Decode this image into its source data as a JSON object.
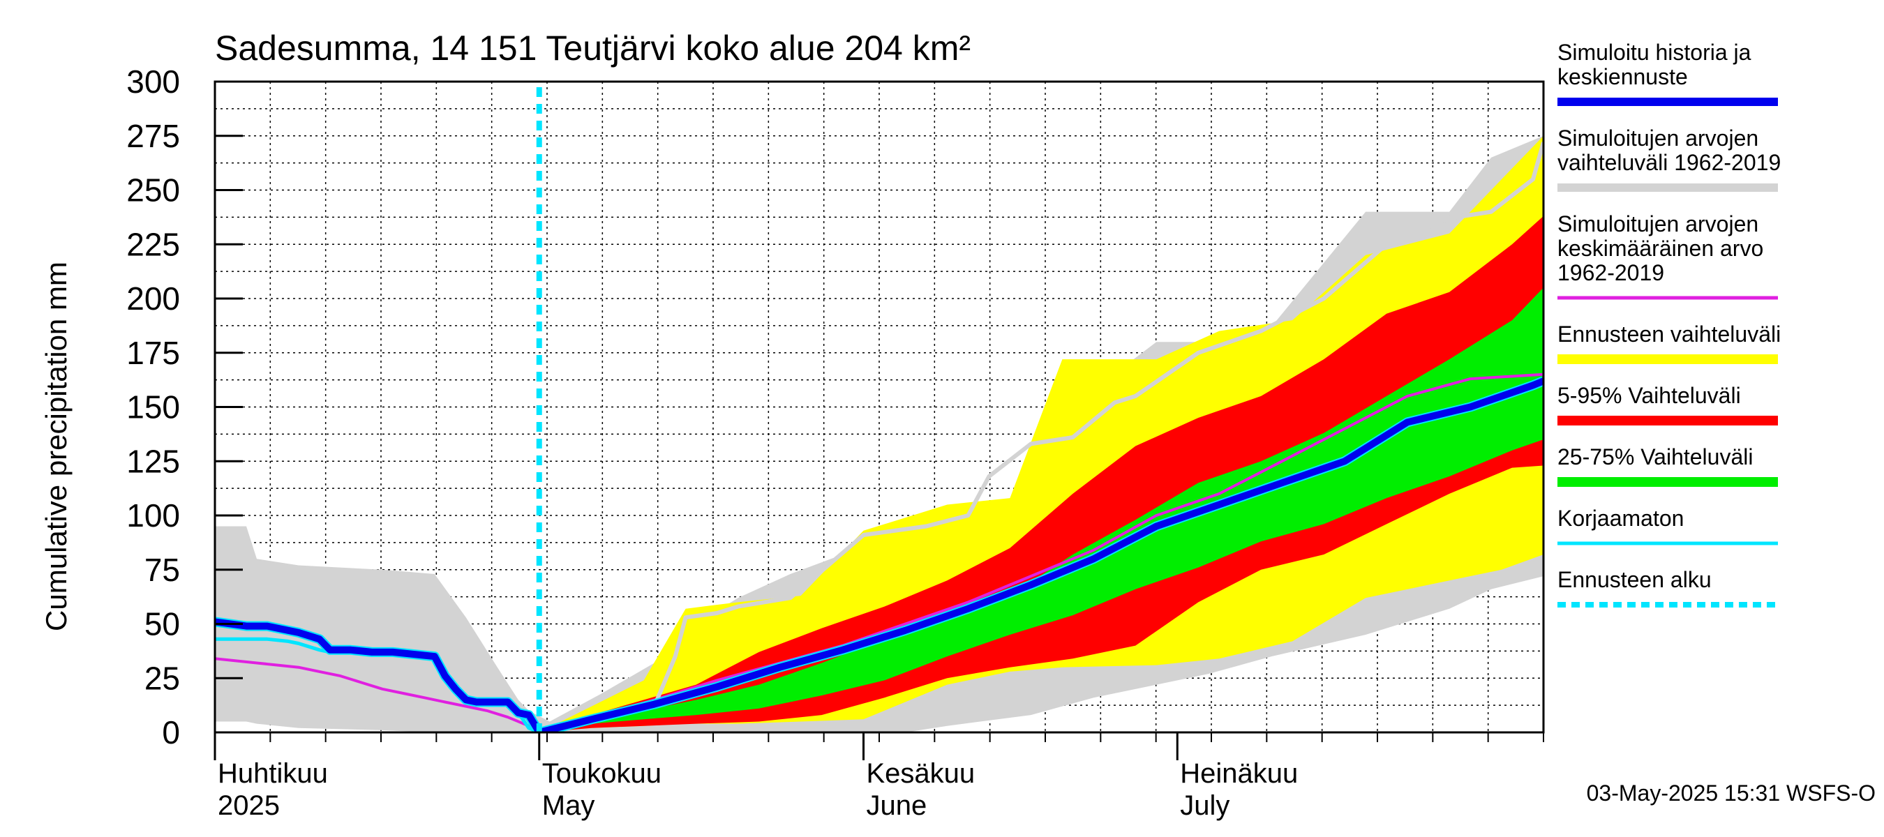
{
  "chart_data": {
    "type": "area",
    "title": "Sadesumma, 14 151 Teutjärvi koko alue 204 km²",
    "ylabel": "Cumulative precipitation   mm",
    "ylim": [
      0,
      300
    ],
    "yticks": [
      0,
      25,
      50,
      75,
      100,
      125,
      150,
      175,
      200,
      225,
      250,
      275,
      300
    ],
    "xlim": [
      0,
      127
    ],
    "x_unit": "days since 2025-03-24",
    "grid": true,
    "forecast_start_day": 31,
    "month_labels": [
      {
        "day": 0,
        "line1": "Huhtikuu",
        "line2": "2025"
      },
      {
        "day": 31,
        "line1": "Toukokuu",
        "line2": "May"
      },
      {
        "day": 62,
        "line1": "Kesäkuu",
        "line2": "June"
      },
      {
        "day": 92,
        "line1": "Heinäkuu",
        "line2": "July"
      }
    ],
    "legend_position": "right",
    "legend": [
      {
        "label": [
          "Simuloitu historia ja",
          "keskiennuste"
        ],
        "color": "#0000ee",
        "kind": "line",
        "width": 12
      },
      {
        "label": [
          "Simuloitujen arvojen",
          "vaihteluväli 1962-2019"
        ],
        "color": "#d3d3d3",
        "kind": "line",
        "width": 12
      },
      {
        "label": [
          "Simuloitujen arvojen",
          "keskimääräinen arvo",
          "   1962-2019"
        ],
        "color": "#e020e0",
        "kind": "line",
        "width": 5
      },
      {
        "label": [
          "Ennusteen vaihteluväli"
        ],
        "color": "#ffff00",
        "kind": "line",
        "width": 14
      },
      {
        "label": [
          "5-95% Vaihteluväli"
        ],
        "color": "#ff0000",
        "kind": "line",
        "width": 14
      },
      {
        "label": [
          "25-75% Vaihteluväli"
        ],
        "color": "#00ee00",
        "kind": "line",
        "width": 14
      },
      {
        "label": [
          "Korjaamaton"
        ],
        "color": "#00e5ff",
        "kind": "line",
        "width": 5
      },
      {
        "label": [
          "Ennusteen alku"
        ],
        "color": "#00e5ff",
        "kind": "dashed",
        "width": 8
      }
    ],
    "series": [
      {
        "name": "Simuloitujen arvojen vaihteluväli 1962-2019",
        "color": "#d3d3d3",
        "kind": "band",
        "x": [
          -1,
          3,
          4,
          8,
          16,
          21,
          24,
          27,
          29,
          30,
          32,
          37,
          42,
          46,
          50,
          55,
          60,
          66,
          70,
          78,
          84,
          90,
          95,
          101,
          110,
          118,
          122,
          127
        ],
        "upper": [
          95,
          95,
          80,
          77,
          75,
          73,
          53,
          30,
          15,
          10,
          5,
          18,
          32,
          50,
          62,
          73,
          82,
          83,
          93,
          95,
          158,
          180,
          180,
          187,
          240,
          240,
          265,
          275
        ],
        "lower": [
          5,
          5,
          4,
          2,
          1,
          0,
          0,
          0,
          0,
          0,
          0,
          0,
          0,
          0,
          0,
          0,
          0,
          0,
          3,
          8,
          16,
          22,
          27,
          35,
          45,
          57,
          66,
          72
        ]
      },
      {
        "name": "Ennusteen vaihteluväli",
        "color": "#ffff00",
        "kind": "band",
        "x": [
          31,
          36,
          41,
          45,
          50,
          56,
          62,
          70,
          76,
          81,
          90,
          96,
          103,
          110,
          118,
          123,
          127
        ],
        "upper": [
          0,
          12,
          24,
          57,
          60,
          63,
          93,
          105,
          108,
          172,
          172,
          185,
          190,
          220,
          230,
          255,
          275
        ],
        "lower": [
          0,
          2,
          3,
          4,
          4,
          5,
          6,
          22,
          28,
          30,
          31,
          34,
          42,
          62,
          70,
          75,
          82
        ]
      },
      {
        "name": "5-95% Vaihteluväli",
        "color": "#ff0000",
        "kind": "band",
        "x": [
          31,
          36,
          41,
          46,
          52,
          58,
          64,
          70,
          76,
          82,
          88,
          94,
          100,
          106,
          112,
          118,
          124,
          127
        ],
        "upper": [
          0,
          8,
          15,
          22,
          37,
          48,
          58,
          70,
          85,
          110,
          132,
          145,
          155,
          172,
          193,
          203,
          225,
          238
        ],
        "lower": [
          0,
          2,
          3,
          4,
          5,
          8,
          16,
          25,
          30,
          34,
          40,
          60,
          75,
          82,
          96,
          110,
          122,
          123
        ]
      },
      {
        "name": "25-75% Vaihteluväli",
        "color": "#00ee00",
        "kind": "band",
        "x": [
          31,
          36,
          41,
          46,
          52,
          58,
          64,
          70,
          76,
          82,
          88,
          94,
          100,
          106,
          112,
          118,
          124,
          127
        ],
        "upper": [
          0,
          6,
          10,
          15,
          22,
          32,
          43,
          53,
          63,
          82,
          98,
          115,
          125,
          138,
          155,
          172,
          190,
          205
        ],
        "lower": [
          0,
          4,
          6,
          8,
          11,
          17,
          24,
          35,
          45,
          54,
          66,
          76,
          88,
          96,
          108,
          118,
          130,
          135
        ]
      },
      {
        "name": "Simuloitujen arvojen keskimääräinen arvo 1962-2019",
        "color": "#e020e0",
        "kind": "line",
        "width": 4,
        "x": [
          0,
          2,
          4,
          6,
          8,
          10,
          12,
          14,
          16,
          18,
          20,
          22,
          24,
          26,
          28,
          30,
          31,
          36,
          42,
          48,
          54,
          60,
          66,
          72,
          78,
          84,
          90,
          96,
          102,
          108,
          114,
          120,
          127
        ],
        "y": [
          34,
          33,
          32,
          31,
          30,
          28,
          26,
          23,
          20,
          18,
          16,
          14,
          12,
          10,
          7,
          3,
          0,
          7,
          15,
          24,
          32,
          40,
          50,
          60,
          72,
          84,
          100,
          110,
          125,
          140,
          155,
          163,
          165
        ]
      },
      {
        "name": "Simuloitujen arvojen vaihteluväli (yläraja) 1962-2019",
        "color": "#d3d3d3",
        "kind": "line",
        "width": 6,
        "x": [
          31,
          36,
          42,
          44,
          45,
          48,
          50,
          55,
          62,
          68,
          72,
          74,
          78,
          82,
          86,
          88,
          94,
          100,
          106,
          112,
          118,
          122,
          126,
          127
        ],
        "y": [
          0,
          6,
          12,
          35,
          53,
          55,
          58,
          62,
          91,
          95,
          100,
          118,
          133,
          136,
          152,
          155,
          175,
          185,
          200,
          225,
          237,
          240,
          255,
          272
        ]
      },
      {
        "name": "Korjaamaton",
        "color": "#00e5ff",
        "kind": "line",
        "width": 5,
        "x": [
          0,
          3,
          5,
          7,
          8,
          10,
          11,
          13,
          15,
          17,
          19,
          21,
          22,
          23,
          24,
          25,
          26,
          28,
          29,
          30,
          31
        ],
        "y": [
          43,
          43,
          43,
          42,
          41,
          38,
          37,
          37,
          36,
          36,
          35,
          34,
          25,
          19,
          14,
          13,
          13,
          13,
          9,
          2,
          0
        ]
      },
      {
        "name": "Simuloitu historia ja keskiennuste",
        "color": "#0000ee",
        "kind": "line",
        "width": 10,
        "x": [
          0,
          3,
          5,
          7,
          8,
          10,
          11,
          13,
          15,
          17,
          19,
          21,
          22,
          23,
          24,
          25,
          26,
          28,
          29,
          30,
          31,
          36,
          42,
          48,
          54,
          60,
          66,
          72,
          78,
          84,
          90,
          96,
          102,
          108,
          114,
          120,
          126,
          127
        ],
        "y": [
          51,
          49,
          49,
          47,
          46,
          43,
          38,
          38,
          37,
          37,
          36,
          35,
          26,
          20,
          15,
          14,
          14,
          14,
          9,
          8,
          0,
          6,
          13,
          21,
          30,
          38,
          47,
          57,
          68,
          80,
          95,
          105,
          115,
          125,
          143,
          150,
          160,
          162
        ]
      }
    ]
  },
  "footer": {
    "timestamp": "03-May-2025 15:31 WSFS-O"
  }
}
